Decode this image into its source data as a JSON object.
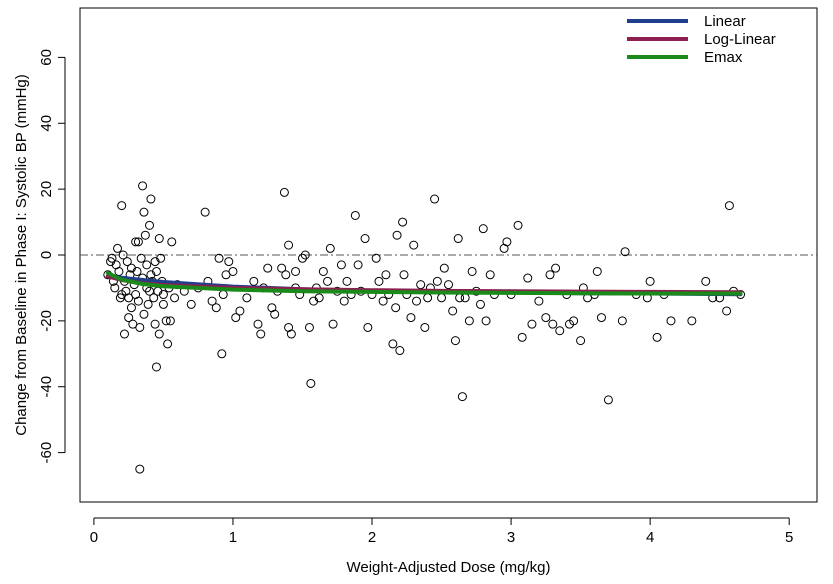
{
  "chart_data": {
    "type": "scatter",
    "title": "",
    "xlabel": "Weight-Adjusted Dose (mg/kg)",
    "ylabel": "Change from Baseline in Phase I: Systolic BP (mmHg)",
    "xlim": [
      -0.1,
      5.2
    ],
    "ylim": [
      -75,
      75
    ],
    "xticks": [
      "0",
      "1",
      "2",
      "3",
      "4",
      "5"
    ],
    "yticks": [
      "-60",
      "-40",
      "-20",
      "0",
      "20",
      "40",
      "60"
    ],
    "reference_line": {
      "y": 0,
      "style": "dash-dot"
    },
    "grid": false,
    "legend_position": "top-right",
    "series": [
      {
        "name": "Linear",
        "color": "#1f3f8c",
        "type": "line",
        "points": [
          [
            0.1,
            -6.5
          ],
          [
            0.5,
            -8.2
          ],
          [
            1.0,
            -9.6
          ],
          [
            1.5,
            -10.4
          ],
          [
            2.0,
            -10.9
          ],
          [
            2.5,
            -11.2
          ],
          [
            3.0,
            -11.4
          ],
          [
            3.5,
            -11.6
          ],
          [
            4.0,
            -11.7
          ],
          [
            4.65,
            -11.9
          ]
        ]
      },
      {
        "name": "Log-Linear",
        "color": "#8c1f4f",
        "type": "line",
        "points": [
          [
            0.1,
            -6.5
          ],
          [
            0.2,
            -7.6
          ],
          [
            0.35,
            -8.6
          ],
          [
            0.5,
            -9.1
          ],
          [
            1.0,
            -10.0
          ],
          [
            1.5,
            -10.4
          ],
          [
            2.0,
            -10.7
          ],
          [
            2.5,
            -10.9
          ],
          [
            3.0,
            -11.0
          ],
          [
            3.5,
            -11.1
          ],
          [
            4.0,
            -11.2
          ],
          [
            4.65,
            -11.3
          ]
        ]
      },
      {
        "name": "Emax",
        "color": "#1a8a1a",
        "type": "line",
        "points": [
          [
            0.1,
            -5.5
          ],
          [
            0.2,
            -7.5
          ],
          [
            0.35,
            -8.8
          ],
          [
            0.5,
            -9.5
          ],
          [
            1.0,
            -10.5
          ],
          [
            1.5,
            -11.0
          ],
          [
            2.0,
            -11.2
          ],
          [
            2.5,
            -11.4
          ],
          [
            3.0,
            -11.5
          ],
          [
            3.5,
            -11.6
          ],
          [
            4.0,
            -11.7
          ],
          [
            4.65,
            -11.7
          ]
        ]
      }
    ],
    "observations": {
      "name": "",
      "marker": "open-circle",
      "points": [
        [
          0.1,
          -6
        ],
        [
          0.12,
          -2
        ],
        [
          0.13,
          -1
        ],
        [
          0.14,
          -8
        ],
        [
          0.15,
          -10
        ],
        [
          0.16,
          -3
        ],
        [
          0.17,
          2
        ],
        [
          0.18,
          -5
        ],
        [
          0.19,
          -13
        ],
        [
          0.2,
          -12
        ],
        [
          0.2,
          15
        ],
        [
          0.21,
          0
        ],
        [
          0.22,
          -24
        ],
        [
          0.22,
          -8
        ],
        [
          0.23,
          -11
        ],
        [
          0.24,
          -2
        ],
        [
          0.25,
          -13
        ],
        [
          0.25,
          -19
        ],
        [
          0.26,
          -6
        ],
        [
          0.27,
          -4
        ],
        [
          0.27,
          -16
        ],
        [
          0.28,
          -21
        ],
        [
          0.29,
          -9
        ],
        [
          0.3,
          4
        ],
        [
          0.3,
          -12
        ],
        [
          0.31,
          -5
        ],
        [
          0.32,
          -14
        ],
        [
          0.32,
          4
        ],
        [
          0.33,
          -22
        ],
        [
          0.33,
          -65
        ],
        [
          0.34,
          -1
        ],
        [
          0.35,
          21
        ],
        [
          0.35,
          -7
        ],
        [
          0.36,
          13
        ],
        [
          0.36,
          -18
        ],
        [
          0.37,
          6
        ],
        [
          0.38,
          -3
        ],
        [
          0.38,
          -10
        ],
        [
          0.39,
          -15
        ],
        [
          0.4,
          9
        ],
        [
          0.4,
          -11
        ],
        [
          0.41,
          17
        ],
        [
          0.41,
          -6
        ],
        [
          0.42,
          -8
        ],
        [
          0.43,
          -13
        ],
        [
          0.44,
          -21
        ],
        [
          0.44,
          -2
        ],
        [
          0.45,
          -34
        ],
        [
          0.45,
          -5
        ],
        [
          0.46,
          -11
        ],
        [
          0.47,
          5
        ],
        [
          0.47,
          -24
        ],
        [
          0.48,
          -1
        ],
        [
          0.49,
          -8
        ],
        [
          0.5,
          -15
        ],
        [
          0.5,
          -12
        ],
        [
          0.52,
          -20
        ],
        [
          0.53,
          -27
        ],
        [
          0.54,
          -10
        ],
        [
          0.55,
          -20
        ],
        [
          0.56,
          4
        ],
        [
          0.58,
          -13
        ],
        [
          0.6,
          -9
        ],
        [
          0.65,
          -11
        ],
        [
          0.7,
          -15
        ],
        [
          0.75,
          -10
        ],
        [
          0.8,
          13
        ],
        [
          0.82,
          -8
        ],
        [
          0.85,
          -14
        ],
        [
          0.88,
          -16
        ],
        [
          0.9,
          -1
        ],
        [
          0.92,
          -30
        ],
        [
          0.93,
          -12
        ],
        [
          0.95,
          -6
        ],
        [
          0.97,
          -2
        ],
        [
          1.0,
          -5
        ],
        [
          1.02,
          -19
        ],
        [
          1.05,
          -17
        ],
        [
          1.1,
          -13
        ],
        [
          1.15,
          -8
        ],
        [
          1.18,
          -21
        ],
        [
          1.2,
          -24
        ],
        [
          1.22,
          -10
        ],
        [
          1.25,
          -4
        ],
        [
          1.28,
          -16
        ],
        [
          1.3,
          -18
        ],
        [
          1.32,
          -11
        ],
        [
          1.35,
          -4
        ],
        [
          1.37,
          19
        ],
        [
          1.38,
          -6
        ],
        [
          1.4,
          3
        ],
        [
          1.4,
          -22
        ],
        [
          1.42,
          -24
        ],
        [
          1.45,
          -10
        ],
        [
          1.45,
          -5
        ],
        [
          1.48,
          -12
        ],
        [
          1.5,
          -1
        ],
        [
          1.52,
          0
        ],
        [
          1.55,
          -22
        ],
        [
          1.56,
          -39
        ],
        [
          1.58,
          -14
        ],
        [
          1.6,
          -10
        ],
        [
          1.62,
          -13
        ],
        [
          1.65,
          -5
        ],
        [
          1.68,
          -8
        ],
        [
          1.7,
          2
        ],
        [
          1.72,
          -21
        ],
        [
          1.75,
          -11
        ],
        [
          1.78,
          -3
        ],
        [
          1.8,
          -14
        ],
        [
          1.82,
          -8
        ],
        [
          1.85,
          -12
        ],
        [
          1.88,
          12
        ],
        [
          1.9,
          -3
        ],
        [
          1.92,
          -11
        ],
        [
          1.95,
          5
        ],
        [
          1.97,
          -22
        ],
        [
          2.0,
          -12
        ],
        [
          2.03,
          -1
        ],
        [
          2.05,
          -8
        ],
        [
          2.08,
          -14
        ],
        [
          2.1,
          -6
        ],
        [
          2.12,
          -12
        ],
        [
          2.15,
          -27
        ],
        [
          2.17,
          -16
        ],
        [
          2.18,
          6
        ],
        [
          2.2,
          -29
        ],
        [
          2.22,
          10
        ],
        [
          2.23,
          -6
        ],
        [
          2.25,
          -12
        ],
        [
          2.28,
          -19
        ],
        [
          2.3,
          3
        ],
        [
          2.32,
          -14
        ],
        [
          2.35,
          -9
        ],
        [
          2.38,
          -22
        ],
        [
          2.4,
          -13
        ],
        [
          2.42,
          -10
        ],
        [
          2.45,
          17
        ],
        [
          2.47,
          -8
        ],
        [
          2.5,
          -13
        ],
        [
          2.52,
          -4
        ],
        [
          2.55,
          -9
        ],
        [
          2.58,
          -17
        ],
        [
          2.6,
          -26
        ],
        [
          2.62,
          5
        ],
        [
          2.63,
          -13
        ],
        [
          2.65,
          -43
        ],
        [
          2.67,
          -13
        ],
        [
          2.7,
          -20
        ],
        [
          2.72,
          -5
        ],
        [
          2.75,
          -11
        ],
        [
          2.78,
          -15
        ],
        [
          2.8,
          8
        ],
        [
          2.82,
          -20
        ],
        [
          2.85,
          -6
        ],
        [
          2.88,
          -12
        ],
        [
          2.95,
          2
        ],
        [
          2.97,
          4
        ],
        [
          3.0,
          -12
        ],
        [
          3.05,
          9
        ],
        [
          3.08,
          -25
        ],
        [
          3.12,
          -7
        ],
        [
          3.15,
          -21
        ],
        [
          3.2,
          -14
        ],
        [
          3.25,
          -19
        ],
        [
          3.28,
          -6
        ],
        [
          3.3,
          -21
        ],
        [
          3.32,
          -4
        ],
        [
          3.35,
          -23
        ],
        [
          3.4,
          -12
        ],
        [
          3.42,
          -21
        ],
        [
          3.45,
          -20
        ],
        [
          3.5,
          -26
        ],
        [
          3.52,
          -10
        ],
        [
          3.55,
          -13
        ],
        [
          3.6,
          -12
        ],
        [
          3.62,
          -5
        ],
        [
          3.65,
          -19
        ],
        [
          3.7,
          -44
        ],
        [
          3.8,
          -20
        ],
        [
          3.82,
          1
        ],
        [
          3.9,
          -12
        ],
        [
          3.98,
          -13
        ],
        [
          4.0,
          -8
        ],
        [
          4.05,
          -25
        ],
        [
          4.1,
          -12
        ],
        [
          4.15,
          -20
        ],
        [
          4.3,
          -20
        ],
        [
          4.4,
          -8
        ],
        [
          4.45,
          -13
        ],
        [
          4.5,
          -13
        ],
        [
          4.55,
          -17
        ],
        [
          4.57,
          15
        ],
        [
          4.6,
          -11
        ],
        [
          4.65,
          -12
        ]
      ]
    }
  }
}
